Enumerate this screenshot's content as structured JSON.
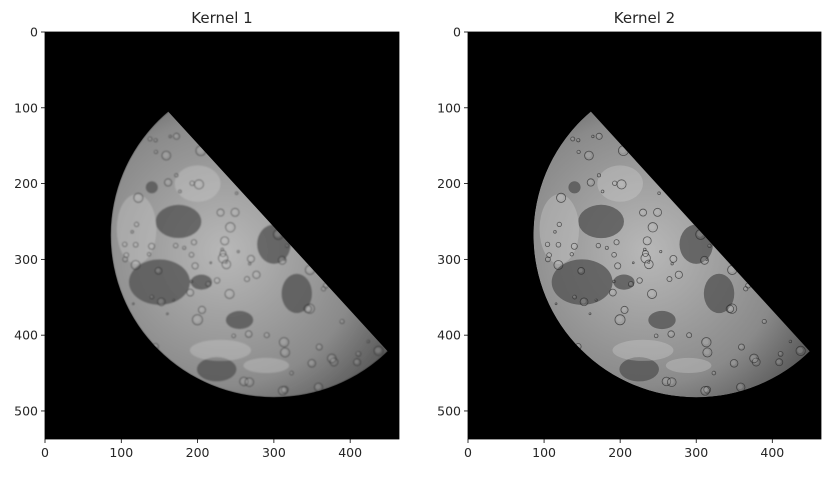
{
  "chart_data": [
    {
      "type": "image",
      "title": "Kernel 1",
      "xlabel": "",
      "ylabel": "",
      "image_extent": {
        "width": 464,
        "height": 537
      },
      "xlim": [
        0,
        464
      ],
      "ylim": [
        537,
        0
      ],
      "xticks": [
        0,
        100,
        200,
        300,
        400
      ],
      "yticks": [
        0,
        100,
        200,
        300,
        400,
        500
      ],
      "colormap": "gray",
      "background_color": "#000000",
      "subject": {
        "name": "crescent-moon",
        "limb_circle": {
          "cx": 300,
          "cy": 268,
          "r": 214
        },
        "terminator_line": [
          [
            146,
            88
          ],
          [
            408,
            376
          ]
        ],
        "sharpness": "soft"
      }
    },
    {
      "type": "image",
      "title": "Kernel 2",
      "xlabel": "",
      "ylabel": "",
      "image_extent": {
        "width": 464,
        "height": 537
      },
      "xlim": [
        0,
        464
      ],
      "ylim": [
        537,
        0
      ],
      "xticks": [
        0,
        100,
        200,
        300,
        400
      ],
      "yticks": [
        0,
        100,
        200,
        300,
        400,
        500
      ],
      "colormap": "gray",
      "background_color": "#000000",
      "subject": {
        "name": "crescent-moon",
        "limb_circle": {
          "cx": 300,
          "cy": 268,
          "r": 214
        },
        "terminator_line": [
          [
            146,
            88
          ],
          [
            408,
            376
          ]
        ],
        "sharpness": "sharp"
      }
    }
  ]
}
